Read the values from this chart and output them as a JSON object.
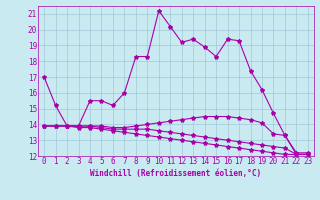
{
  "xlabel": "Windchill (Refroidissement éolien,°C)",
  "ylabel": "",
  "background_color": "#c8eaf0",
  "grid_color": "#a0c8d8",
  "line_color": "#aa00aa",
  "xlim": [
    -0.5,
    23.5
  ],
  "ylim": [
    12,
    21.5
  ],
  "yticks": [
    12,
    13,
    14,
    15,
    16,
    17,
    18,
    19,
    20,
    21
  ],
  "xticks": [
    0,
    1,
    2,
    3,
    4,
    5,
    6,
    7,
    8,
    9,
    10,
    11,
    12,
    13,
    14,
    15,
    16,
    17,
    18,
    19,
    20,
    21,
    22,
    23
  ],
  "series": [
    [
      17.0,
      15.2,
      13.9,
      13.9,
      15.5,
      15.5,
      15.2,
      16.0,
      18.3,
      18.3,
      21.2,
      20.2,
      19.2,
      19.4,
      18.9,
      18.3,
      19.4,
      19.3,
      17.4,
      16.2,
      14.7,
      13.3,
      12.1,
      12.1
    ],
    [
      13.9,
      13.9,
      13.9,
      13.9,
      13.9,
      13.9,
      13.8,
      13.8,
      13.9,
      14.0,
      14.1,
      14.2,
      14.3,
      14.4,
      14.5,
      14.5,
      14.5,
      14.4,
      14.3,
      14.1,
      13.4,
      13.3,
      12.2,
      12.2
    ],
    [
      13.9,
      13.9,
      13.9,
      13.9,
      13.9,
      13.8,
      13.7,
      13.7,
      13.7,
      13.7,
      13.6,
      13.5,
      13.4,
      13.3,
      13.2,
      13.1,
      13.0,
      12.9,
      12.8,
      12.7,
      12.6,
      12.5,
      12.1,
      12.1
    ],
    [
      13.9,
      13.9,
      13.9,
      13.8,
      13.8,
      13.7,
      13.6,
      13.5,
      13.4,
      13.3,
      13.2,
      13.1,
      13.0,
      12.9,
      12.8,
      12.7,
      12.6,
      12.5,
      12.4,
      12.3,
      12.2,
      12.1,
      12.1,
      12.1
    ]
  ],
  "marker": "*",
  "markersize": 3,
  "linewidth": 0.8,
  "xlabel_fontsize": 5.5,
  "tick_fontsize": 5.5
}
